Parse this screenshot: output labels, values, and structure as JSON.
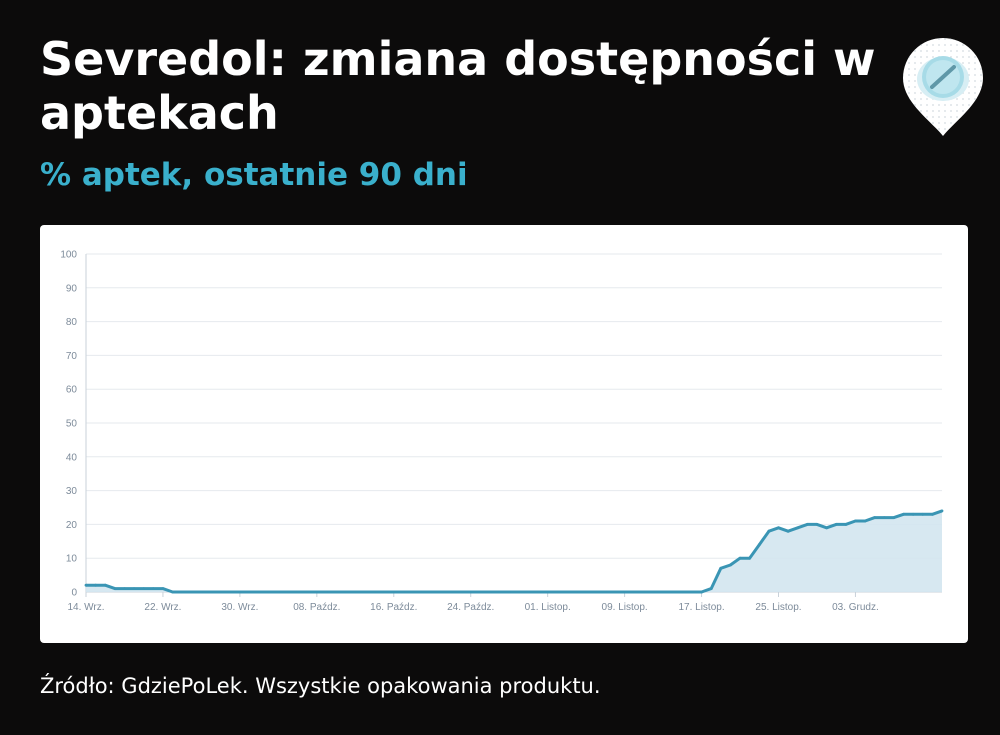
{
  "header": {
    "title": "Sevredol: zmiana dostępności w aptekach",
    "subtitle": "% aptek, ostatnie 90 dni"
  },
  "logo": {
    "icon": "pill-location-pin-icon",
    "color": "#9fd6e3"
  },
  "footer": {
    "source": "Źródło: GdziePoLek. Wszystkie opakowania produktu."
  },
  "colors": {
    "accent": "#3ab0cc",
    "line": "#3a95b4",
    "area": "#d3e6ef",
    "background": "#0c0b0b"
  },
  "chart_data": {
    "type": "area",
    "title": "",
    "xlabel": "",
    "ylabel": "",
    "ylim": [
      0,
      100
    ],
    "y_ticks": [
      0,
      10,
      20,
      30,
      40,
      50,
      60,
      70,
      80,
      90,
      100
    ],
    "x_tick_labels": [
      "14. Wrz.",
      "22. Wrz.",
      "30. Wrz.",
      "08. Paźdz.",
      "16. Paźdz.",
      "24. Paźdz.",
      "01. Listop.",
      "09. Listop.",
      "17. Listop.",
      "25. Listop.",
      "03. Grudz."
    ],
    "x_tick_days": [
      0,
      8,
      16,
      24,
      32,
      40,
      48,
      56,
      64,
      72,
      80
    ],
    "x_range_days": [
      0,
      89
    ],
    "grid": true,
    "legend": "none",
    "series": [
      {
        "values": [
          2,
          2,
          2,
          1,
          1,
          1,
          1,
          1,
          1,
          0,
          0,
          0,
          0,
          0,
          0,
          0,
          0,
          0,
          0,
          0,
          0,
          0,
          0,
          0,
          0,
          0,
          0,
          0,
          0,
          0,
          0,
          0,
          0,
          0,
          0,
          0,
          0,
          0,
          0,
          0,
          0,
          0,
          0,
          0,
          0,
          0,
          0,
          0,
          0,
          0,
          0,
          0,
          0,
          0,
          0,
          0,
          0,
          0,
          0,
          0,
          0,
          0,
          0,
          0,
          0,
          1,
          7,
          8,
          10,
          10,
          14,
          18,
          19,
          18,
          19,
          20,
          20,
          19,
          20,
          20,
          21,
          21,
          22,
          22,
          22,
          23,
          23,
          23,
          23,
          24
        ]
      }
    ]
  }
}
